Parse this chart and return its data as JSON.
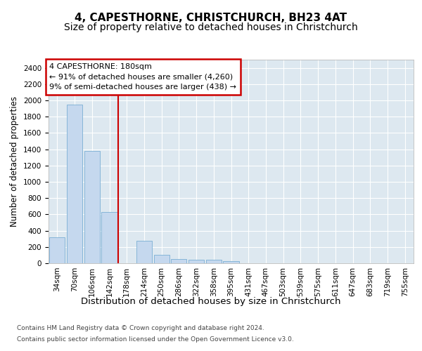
{
  "title": "4, CAPESTHORNE, CHRISTCHURCH, BH23 4AT",
  "subtitle": "Size of property relative to detached houses in Christchurch",
  "xlabel": "Distribution of detached houses by size in Christchurch",
  "ylabel": "Number of detached properties",
  "categories": [
    "34sqm",
    "70sqm",
    "106sqm",
    "142sqm",
    "178sqm",
    "214sqm",
    "250sqm",
    "286sqm",
    "322sqm",
    "358sqm",
    "395sqm",
    "431sqm",
    "467sqm",
    "503sqm",
    "539sqm",
    "575sqm",
    "611sqm",
    "647sqm",
    "683sqm",
    "719sqm",
    "755sqm"
  ],
  "values": [
    320,
    1950,
    1380,
    630,
    0,
    280,
    100,
    55,
    40,
    40,
    25,
    0,
    0,
    0,
    0,
    0,
    0,
    0,
    0,
    0,
    0
  ],
  "bar_color": "#c5d8ee",
  "bar_edge_color": "#7aafd4",
  "red_line_x": 3.5,
  "ylim": [
    0,
    2500
  ],
  "yticks": [
    0,
    200,
    400,
    600,
    800,
    1000,
    1200,
    1400,
    1600,
    1800,
    2000,
    2200,
    2400
  ],
  "annotation_text": "4 CAPESTHORNE: 180sqm\n← 91% of detached houses are smaller (4,260)\n9% of semi-detached houses are larger (438) →",
  "annotation_box_facecolor": "#ffffff",
  "annotation_box_edgecolor": "#cc0000",
  "fig_facecolor": "#ffffff",
  "plot_facecolor": "#dde8f0",
  "grid_color": "#ffffff",
  "footer_line1": "Contains HM Land Registry data © Crown copyright and database right 2024.",
  "footer_line2": "Contains public sector information licensed under the Open Government Licence v3.0.",
  "title_fontsize": 11,
  "subtitle_fontsize": 10,
  "tick_fontsize": 7.5,
  "ylabel_fontsize": 8.5,
  "xlabel_fontsize": 9.5,
  "annotation_fontsize": 8,
  "footer_fontsize": 6.5
}
